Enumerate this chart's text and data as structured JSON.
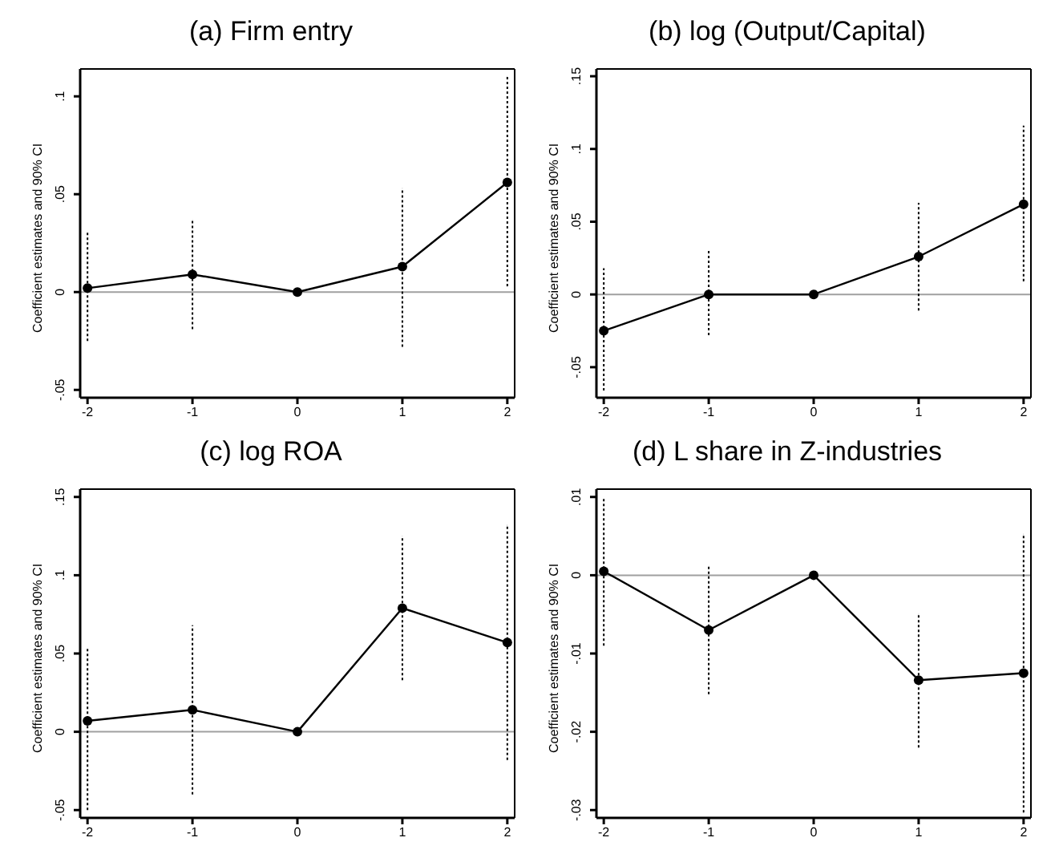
{
  "chart_data": [
    {
      "type": "line",
      "title": "(a) Firm entry",
      "ylabel": "Coefficient estimates and 90% CI",
      "x": [
        -2,
        -1,
        0,
        1,
        2
      ],
      "xlim": [
        -2.07,
        2.07
      ],
      "xticks": [
        -2,
        -1,
        0,
        1,
        2
      ],
      "ylim": [
        -0.054,
        0.114
      ],
      "yticks": [
        {
          "value": -0.05,
          "label": "-.05"
        },
        {
          "value": 0,
          "label": "0"
        },
        {
          "value": 0.05,
          "label": ".05"
        },
        {
          "value": 0.1,
          "label": ".1"
        }
      ],
      "grid": false,
      "marker": "circle",
      "legend": false,
      "ref_lines": [
        {
          "axis": "y",
          "value": 0,
          "color": "#a0a0a0"
        }
      ],
      "series": [
        {
          "color": "#000000",
          "values": [
            0.002,
            0.009,
            0,
            0.013,
            0.056
          ],
          "errors": [
            [
              -0.025,
              0.031
            ],
            [
              -0.019,
              0.037
            ],
            null,
            [
              -0.028,
              0.053
            ],
            [
              0.003,
              0.11
            ]
          ]
        }
      ]
    },
    {
      "type": "line",
      "title": "(b) log (Output/Capital)",
      "ylabel": "Coefficient estimates and 90% CI",
      "x": [
        -2,
        -1,
        0,
        1,
        2
      ],
      "xlim": [
        -2.07,
        2.07
      ],
      "xticks": [
        -2,
        -1,
        0,
        1,
        2
      ],
      "ylim": [
        -0.071,
        0.155
      ],
      "yticks": [
        {
          "value": -0.05,
          "label": "-.05"
        },
        {
          "value": 0,
          "label": "0"
        },
        {
          "value": 0.05,
          "label": ".05"
        },
        {
          "value": 0.1,
          "label": ".1"
        },
        {
          "value": 0.15,
          "label": ".15"
        }
      ],
      "grid": false,
      "marker": "circle",
      "legend": false,
      "ref_lines": [
        {
          "axis": "y",
          "value": 0,
          "color": "#a0a0a0"
        }
      ],
      "series": [
        {
          "color": "#000000",
          "values": [
            -0.025,
            0,
            0,
            0.026,
            0.062
          ],
          "errors": [
            [
              -0.066,
              0.018
            ],
            [
              -0.028,
              0.03
            ],
            null,
            [
              -0.011,
              0.063
            ],
            [
              0.009,
              0.116
            ]
          ]
        }
      ]
    },
    {
      "type": "line",
      "title": "(c) log ROA",
      "ylabel": "Coefficient estimates and 90% CI",
      "x": [
        -2,
        -1,
        0,
        1,
        2
      ],
      "xlim": [
        -2.07,
        2.07
      ],
      "xticks": [
        -2,
        -1,
        0,
        1,
        2
      ],
      "ylim": [
        -0.055,
        0.155
      ],
      "yticks": [
        {
          "value": -0.05,
          "label": "-.05"
        },
        {
          "value": 0,
          "label": "0"
        },
        {
          "value": 0.05,
          "label": ".05"
        },
        {
          "value": 0.1,
          "label": ".1"
        },
        {
          "value": 0.15,
          "label": ".15"
        }
      ],
      "grid": false,
      "marker": "circle",
      "legend": false,
      "ref_lines": [
        {
          "axis": "y",
          "value": 0,
          "color": "#a0a0a0"
        }
      ],
      "series": [
        {
          "color": "#000000",
          "values": [
            0.007,
            0.014,
            0,
            0.079,
            0.057
          ],
          "errors": [
            [
              -0.05,
              0.054
            ],
            [
              -0.04,
              0.068
            ],
            null,
            [
              0.033,
              0.125
            ],
            [
              -0.018,
              0.132
            ]
          ]
        }
      ]
    },
    {
      "type": "line",
      "title": "(d) L share in Z-industries",
      "ylabel": "Coefficient estimates and 90% CI",
      "x": [
        -2,
        -1,
        0,
        1,
        2
      ],
      "xlim": [
        -2.07,
        2.07
      ],
      "xticks": [
        -2,
        -1,
        0,
        1,
        2
      ],
      "ylim": [
        -0.031,
        0.011
      ],
      "yticks": [
        {
          "value": -0.03,
          "label": "-.03"
        },
        {
          "value": -0.02,
          "label": "-.02"
        },
        {
          "value": -0.01,
          "label": "-.01"
        },
        {
          "value": 0,
          "label": "0"
        },
        {
          "value": 0.01,
          "label": ".01"
        }
      ],
      "grid": false,
      "marker": "circle",
      "legend": false,
      "ref_lines": [
        {
          "axis": "y",
          "value": 0,
          "color": "#a0a0a0"
        }
      ],
      "series": [
        {
          "color": "#000000",
          "values": [
            0.0005,
            -0.007,
            0,
            -0.0134,
            -0.0125
          ],
          "errors": [
            [
              -0.009,
              0.01
            ],
            [
              -0.0152,
              0.0012
            ],
            null,
            [
              -0.022,
              -0.005
            ],
            [
              -0.0303,
              0.0052
            ]
          ]
        }
      ]
    }
  ]
}
